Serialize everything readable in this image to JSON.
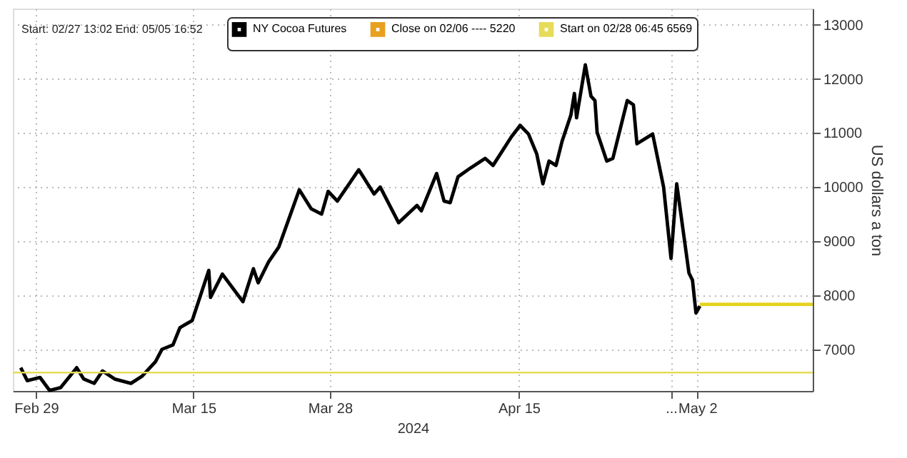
{
  "chart_data": {
    "type": "line",
    "xlabel": "2024",
    "ylabel": "US dollars a ton",
    "annotations": [
      "Start: 02/27 13:02 End: 05/05 16:52"
    ],
    "series": [
      {
        "name": "NY Cocoa Futures",
        "color": "#000000",
        "x": [
          "2024-02-27T13:00",
          "2024-02-28T04:00",
          "2024-02-29T09:00",
          "2024-03-01T07:00",
          "2024-03-02T08:00",
          "2024-03-03T21:00",
          "2024-03-04T13:00",
          "2024-03-05T13:00",
          "2024-03-06T08:00",
          "2024-03-07T12:00",
          "2024-03-09T01:00",
          "2024-03-10T02:00",
          "2024-03-11T09:00",
          "2024-03-12T00:00",
          "2024-03-13T01:00",
          "2024-03-13T17:00",
          "2024-03-14T21:00",
          "2024-03-16T11:00",
          "2024-03-16T15:00",
          "2024-03-17T18:00",
          "2024-03-19T17:00",
          "2024-03-20T17:00",
          "2024-03-21T04:00",
          "2024-03-22T04:00",
          "2024-03-23T03:00",
          "2024-03-25T02:00",
          "2024-03-26T05:00",
          "2024-03-27T05:00",
          "2024-03-27T20:00",
          "2024-03-28T17:00",
          "2024-03-30T18:00",
          "2024-04-01T05:00",
          "2024-04-01T19:00",
          "2024-04-03T13:00",
          "2024-04-05T07:00",
          "2024-04-05T17:00",
          "2024-04-07T04:00",
          "2024-04-07T21:00",
          "2024-04-08T11:00",
          "2024-04-09T05:00",
          "2024-04-10T09:00",
          "2024-04-11T19:00",
          "2024-04-12T13:00",
          "2024-04-14T07:00",
          "2024-04-15T03:00",
          "2024-04-15T22:00",
          "2024-04-16T17:00",
          "2024-04-17T07:00",
          "2024-04-17T21:00",
          "2024-04-18T13:00",
          "2024-04-19T03:00",
          "2024-04-19T23:00",
          "2024-04-20T07:00",
          "2024-04-20T12:00",
          "2024-04-21T08:00",
          "2024-04-21T21:00",
          "2024-04-22T06:00",
          "2024-04-22T11:00",
          "2024-04-23T09:00",
          "2024-04-23T23:00",
          "2024-04-25T08:00",
          "2024-04-25T22:00",
          "2024-04-26T06:00",
          "2024-04-27T18:00",
          "2024-04-28T19:00",
          "2024-04-29T12:00",
          "2024-04-30T01:00",
          "2024-05-01T05:00",
          "2024-05-01T13:00",
          "2024-05-01T21:00",
          "2024-05-02T06:00"
        ],
        "values": [
          6660,
          6420,
          6480,
          6240,
          6290,
          6660,
          6450,
          6370,
          6600,
          6450,
          6370,
          6500,
          6770,
          7000,
          7080,
          7400,
          7530,
          8460,
          7960,
          8390,
          7880,
          8490,
          8230,
          8620,
          8890,
          9950,
          9600,
          9500,
          9920,
          9740,
          10320,
          9870,
          10000,
          9340,
          9660,
          9560,
          10250,
          9740,
          9710,
          10190,
          10350,
          10530,
          10400,
          10930,
          11140,
          10980,
          10610,
          10060,
          10480,
          10400,
          10850,
          11330,
          11730,
          11280,
          12260,
          11680,
          11600,
          11010,
          10480,
          10530,
          11600,
          11520,
          10800,
          10980,
          10000,
          8680,
          10060,
          8410,
          8280,
          7670,
          7800
        ]
      },
      {
        "name": "Close on 02/06 ---- 5220",
        "color": "#e8a020"
      },
      {
        "color": "#e6d21e",
        "x": [
          "2024-05-02T06:00",
          "2024-05-13T00:00"
        ],
        "values": [
          7830,
          7830
        ]
      }
    ],
    "ref_lines": [
      {
        "axis": "y",
        "value": 6569,
        "label": "Start on 02/28 06:45 6569",
        "color": "#e6dc5a"
      }
    ],
    "xlim": [
      "2024-02-26T19:00",
      "2024-05-13T00:00"
    ],
    "xticks": [
      {
        "value": "2024-02-29",
        "label": "Feb 29"
      },
      {
        "value": "2024-03-15",
        "label": "Mar 15"
      },
      {
        "value": "2024-03-28",
        "label": "Mar 28"
      },
      {
        "value": "2024-04-15",
        "label": "Apr 15"
      },
      {
        "value": "2024-04-29T12:00",
        "label": "..."
      },
      {
        "value": "2024-05-02",
        "label": "May 2"
      }
    ],
    "ylim": [
      6230,
      13300
    ],
    "yticks": [
      7000,
      8000,
      9000,
      10000,
      11000,
      12000,
      13000
    ],
    "grid": true,
    "legend": "top",
    "marker": "none",
    "line_style": "solid"
  }
}
